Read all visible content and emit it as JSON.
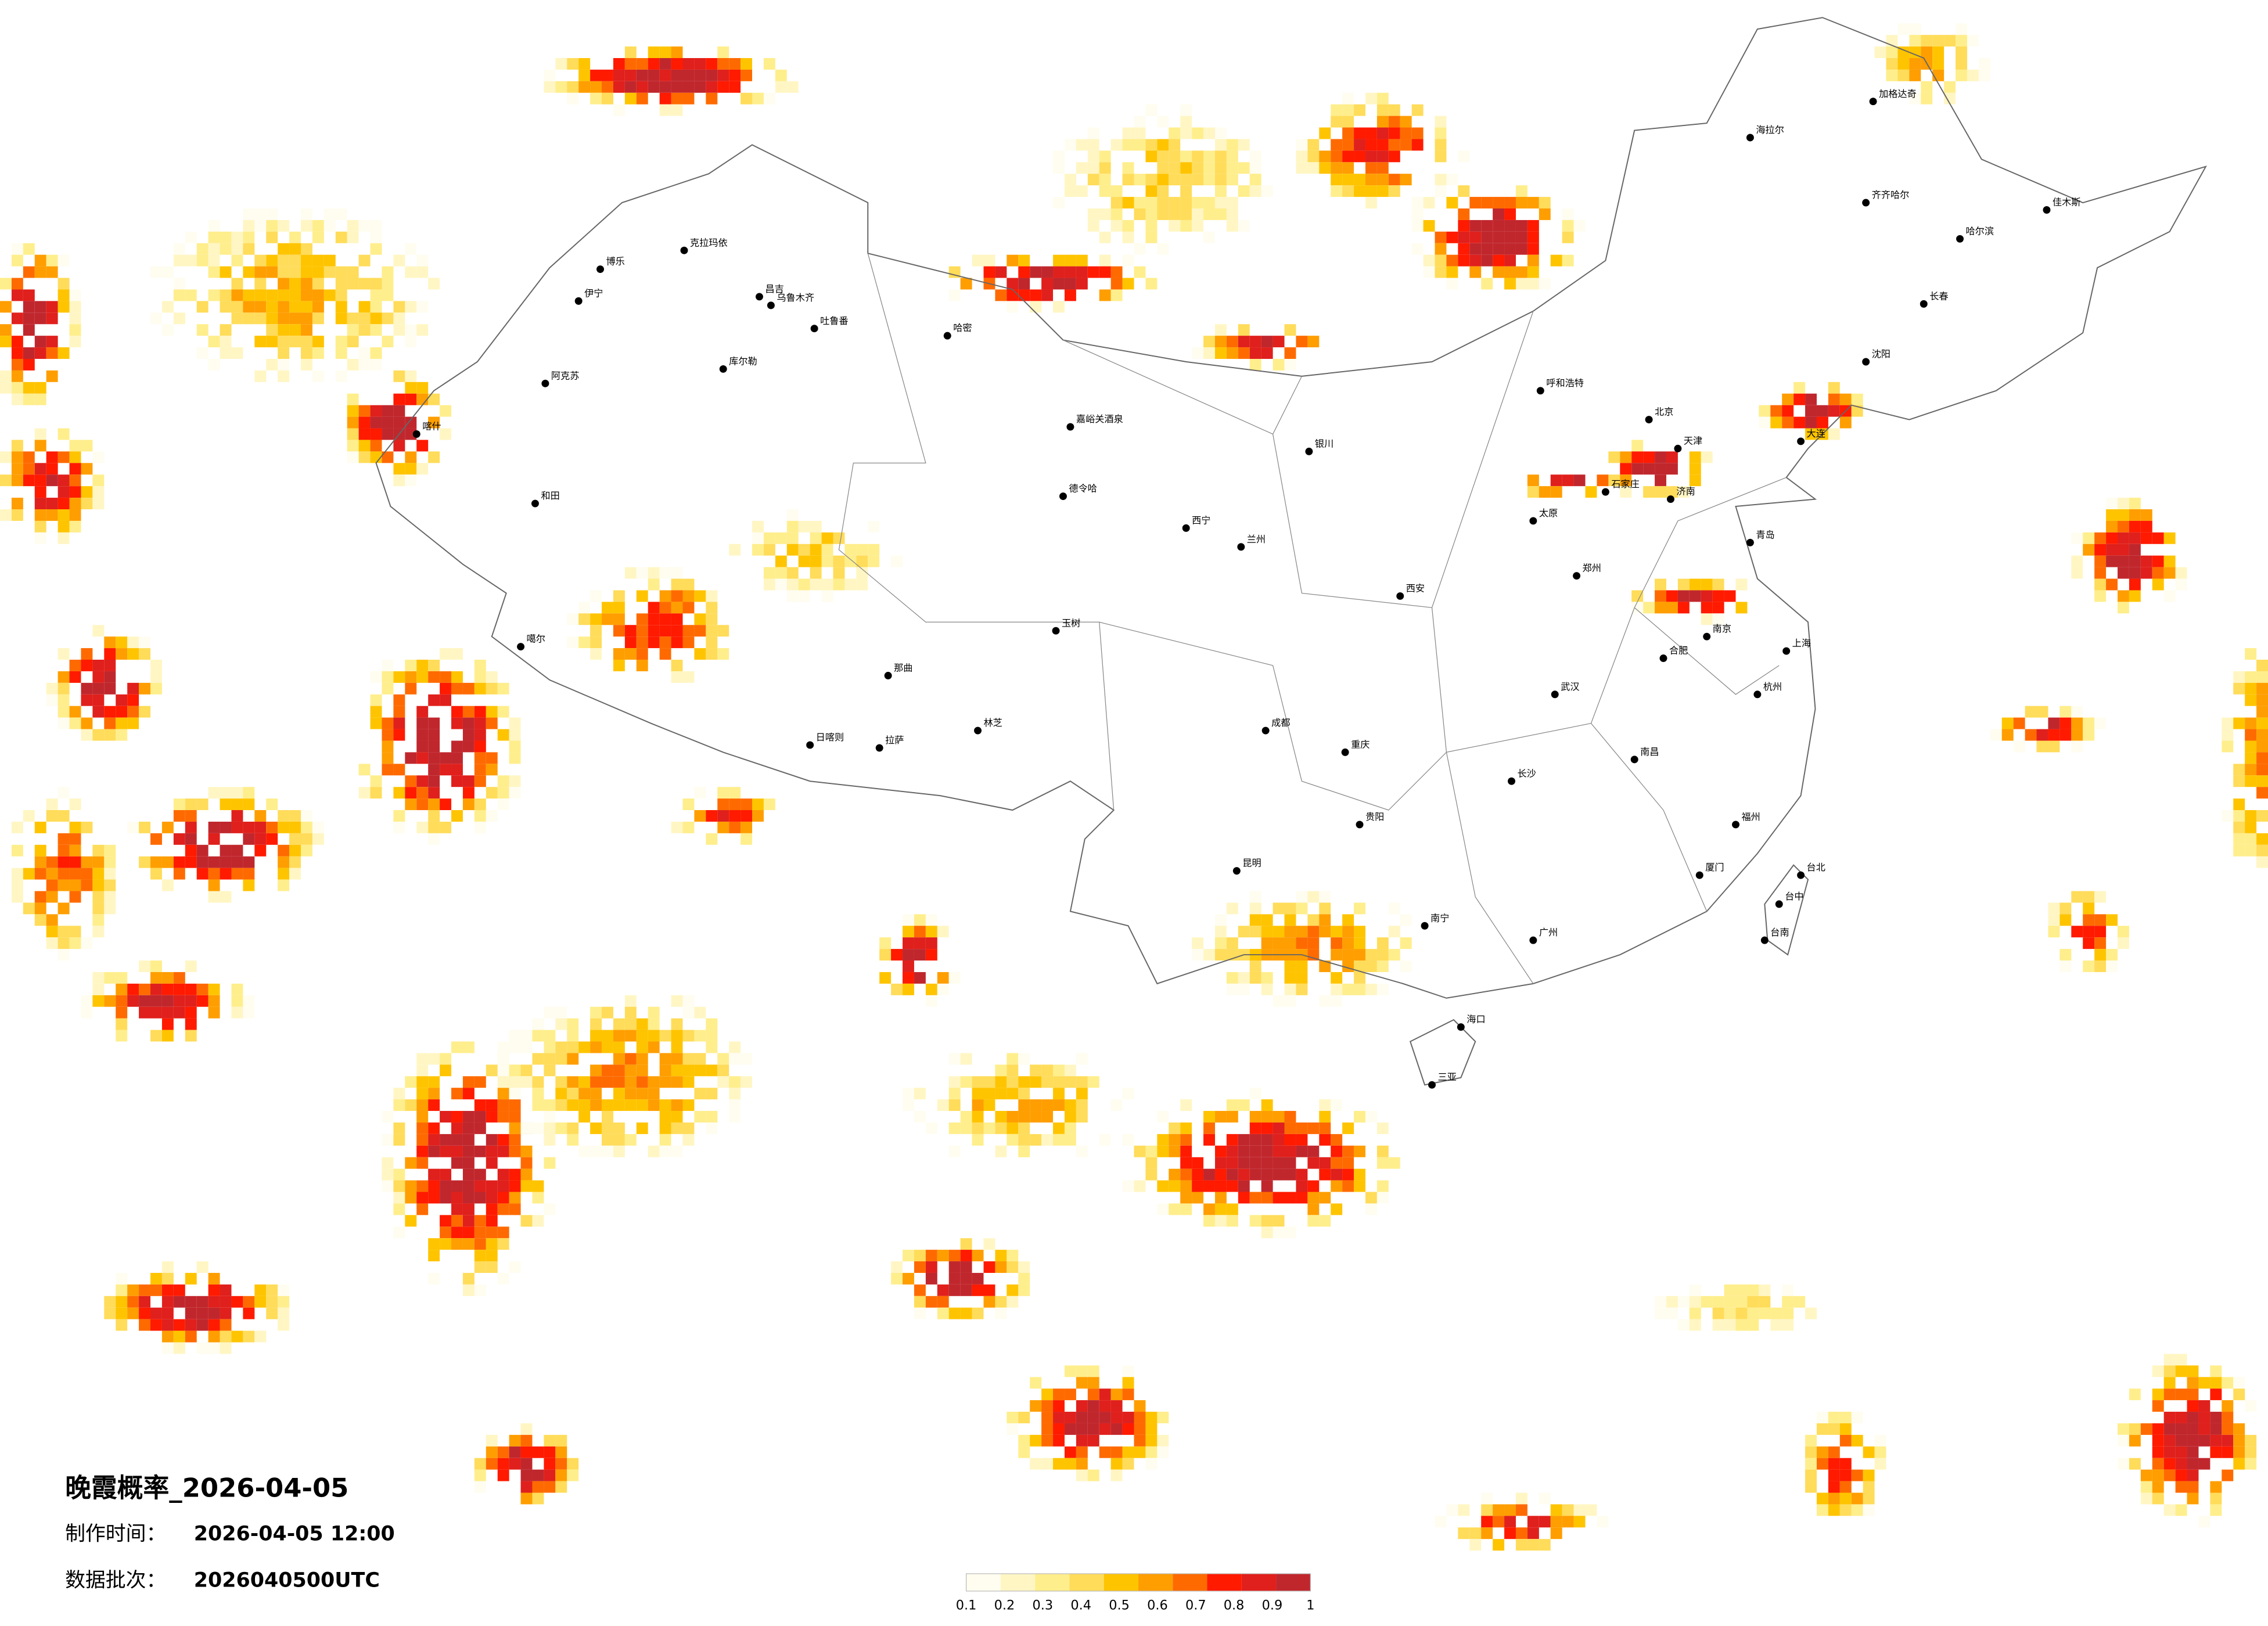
{
  "title": "晚霞概率_2026-04-05",
  "info": [
    {
      "label": "制作时间：",
      "value": "2026-04-05 12:00"
    },
    {
      "label": "数据批次：",
      "value": "2026040500UTC"
    }
  ],
  "legend": {
    "ticks": [
      0.1,
      0.2,
      0.3,
      0.4,
      0.5,
      0.6,
      0.7,
      0.8,
      0.9,
      1
    ],
    "colors": [
      "#fffdf0",
      "#fff6c4",
      "#ffee8c",
      "#ffdc5a",
      "#ffc400",
      "#ff9e00",
      "#ff6a00",
      "#ff1a00",
      "#e0201c",
      "#c0272d"
    ]
  },
  "cities": [
    "克拉玛依",
    "博乐",
    "伊宁",
    "昌吉",
    "乌鲁木齐",
    "吐鲁番",
    "哈密",
    "库尔勒",
    "阿克苏",
    "喀什",
    "和田",
    "嘉峪关酒泉",
    "德令哈",
    "玉树",
    "那曲",
    "拉萨",
    "日喀则",
    "林芝",
    "噶尔",
    "西宁",
    "兰州",
    "银川",
    "呼和浩特",
    "北京",
    "天津",
    "石家庄",
    "太原",
    "济南",
    "青岛",
    "郑州",
    "西安",
    "成都",
    "重庆",
    "贵阳",
    "昆明",
    "南宁",
    "广州",
    "长沙",
    "武汉",
    "南昌",
    "合肥",
    "南京",
    "上海",
    "杭州",
    "福州",
    "厦门",
    "海口",
    "三亚",
    "台北",
    "台中",
    "台南",
    "哈尔滨",
    "长春",
    "沈阳",
    "大连",
    "海拉尔",
    "齐齐哈尔",
    "佳木斯",
    "加格达奇"
  ]
}
